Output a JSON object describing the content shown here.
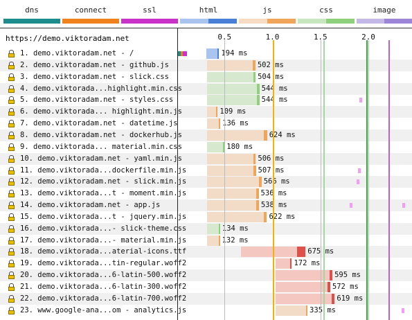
{
  "legend": [
    {
      "label": "dns",
      "color": "#1c8c8c",
      "color2": null
    },
    {
      "label": "connect",
      "color": "#f0821e",
      "color2": null
    },
    {
      "label": "ssl",
      "color": "#c832c8",
      "color2": null
    },
    {
      "label": "html",
      "color": "#a9c4ee",
      "color2": "#4a7fd8"
    },
    {
      "label": "js",
      "color": "#f7dcc3",
      "color2": "#f0a55a"
    },
    {
      "label": "css",
      "color": "#c8e7c0",
      "color2": "#8fd07d"
    },
    {
      "label": "image",
      "color": "#c4b8e6",
      "color2": "#9d86d8"
    }
  ],
  "header": {
    "url": "https://demo.viktoradam.net",
    "scale": [
      "0.5",
      "1.0",
      "1.5",
      "2.0"
    ]
  },
  "rows": [
    {
      "label": "1. demo.viktoradam.net - /",
      "type": "html",
      "ms": "194 ms",
      "start": 0.31,
      "dur": 0.134,
      "pre": true
    },
    {
      "label": "2. demo.viktoradam.net - github.js",
      "type": "js",
      "ms": "502 ms",
      "start": 0.32,
      "dur": 0.502
    },
    {
      "label": "3. demo.viktoradam.net - slick.css",
      "type": "css",
      "ms": "504 ms",
      "start": 0.32,
      "dur": 0.504
    },
    {
      "label": "4. demo.viktorada...highlight.min.css",
      "type": "css",
      "ms": "544 ms",
      "start": 0.32,
      "dur": 0.544
    },
    {
      "label": "5. demo.viktoradam.net - styles.css",
      "type": "css",
      "ms": "544 ms",
      "start": 0.32,
      "dur": 0.544
    },
    {
      "label": "6. demo.viktorada... highlight.min.js",
      "type": "js",
      "ms": "109 ms",
      "start": 0.32,
      "dur": 0.109
    },
    {
      "label": "7. demo.viktoradam.net - datetime.js",
      "type": "js",
      "ms": "136 ms",
      "start": 0.32,
      "dur": 0.136
    },
    {
      "label": "8. demo.viktoradam.net - dockerhub.js",
      "type": "js",
      "ms": "624 ms",
      "start": 0.32,
      "dur": 0.624
    },
    {
      "label": "9. demo.viktorada... material.min.css",
      "type": "css",
      "ms": "180 ms",
      "start": 0.32,
      "dur": 0.18
    },
    {
      "label": "10. demo.viktoradam.net - yaml.min.js",
      "type": "js",
      "ms": "506 ms",
      "start": 0.32,
      "dur": 0.506
    },
    {
      "label": "11. demo.viktorada...dockerfile.min.js",
      "type": "js",
      "ms": "507 ms",
      "start": 0.32,
      "dur": 0.507
    },
    {
      "label": "12. demo.viktoradam.net - slick.min.js",
      "type": "js",
      "ms": "566 ms",
      "start": 0.32,
      "dur": 0.566
    },
    {
      "label": "13. demo.viktorada...t - moment.min.js",
      "type": "js",
      "ms": "536 ms",
      "start": 0.32,
      "dur": 0.536
    },
    {
      "label": "14. demo.viktoradam.net - app.js",
      "type": "js",
      "ms": "538 ms",
      "start": 0.32,
      "dur": 0.538
    },
    {
      "label": "15. demo.viktorada...t - jquery.min.js",
      "type": "js",
      "ms": "622 ms",
      "start": 0.32,
      "dur": 0.622
    },
    {
      "label": "16. demo.viktorada...- slick-theme.css",
      "type": "css",
      "ms": "134 ms",
      "start": 0.32,
      "dur": 0.134
    },
    {
      "label": "17. demo.viktorada...- material.min.js",
      "type": "js",
      "ms": "132 ms",
      "start": 0.32,
      "dur": 0.132
    },
    {
      "label": "18. demo.viktorada...aterial-icons.ttf",
      "type": "font",
      "ms": "675 ms",
      "start": 0.67,
      "dur": 0.675
    },
    {
      "label": "19. demo.viktorada...tin-regular.woff2",
      "type": "font",
      "ms": "172 ms",
      "start": 1.03,
      "dur": 0.172
    },
    {
      "label": "20. demo.viktorada...6-latin-500.woff2",
      "type": "font",
      "ms": "595 ms",
      "start": 1.03,
      "dur": 0.595
    },
    {
      "label": "21. demo.viktorada...6-latin-300.woff2",
      "type": "font",
      "ms": "572 ms",
      "start": 1.03,
      "dur": 0.572
    },
    {
      "label": "22. demo.viktorada...6-latin-700.woff2",
      "type": "font",
      "ms": "619 ms",
      "start": 1.03,
      "dur": 0.619
    },
    {
      "label": "23. www.google-ana...om - analytics.js",
      "type": "js",
      "ms": "335 ms",
      "start": 1.03,
      "dur": 0.335,
      "pre": true
    }
  ],
  "colors": {
    "html_light": "#a9c4ee",
    "html_dark": "#4a7fd8",
    "js_light": "#f2dcc8",
    "js_dark": "#f0a55a",
    "css_light": "#d6e9cf",
    "css_dark": "#8fd07d",
    "font_light": "#f4c8c0",
    "font_dark": "#e0504a",
    "orange_line": "#f0b400",
    "green_line": "#30b030",
    "light_green": "#a0d8a0",
    "magenta_line": "#c060d0"
  }
}
